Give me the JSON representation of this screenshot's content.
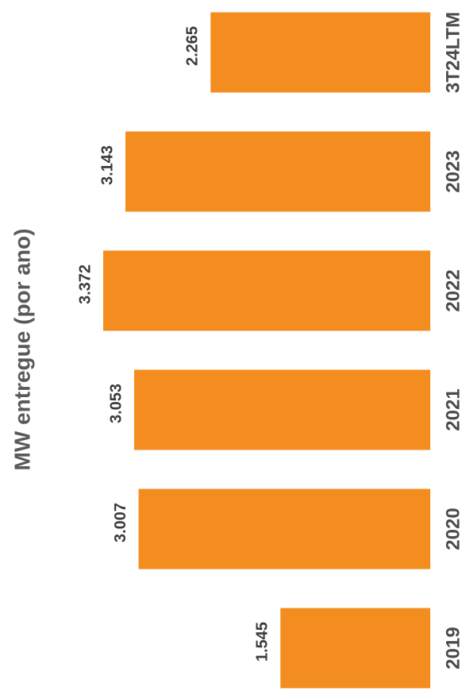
{
  "chart_data": {
    "type": "bar",
    "orientation": "horizontal",
    "title": "MW entregue (por ano)",
    "categories": [
      "2019",
      "2020",
      "2021",
      "2022",
      "2023",
      "3T24LTM"
    ],
    "values": [
      1545,
      3007,
      3053,
      3372,
      3143,
      2265
    ],
    "value_labels": [
      "1.545",
      "3.007",
      "3.053",
      "3.372",
      "3.143",
      "2.265"
    ],
    "color": "#f38d1f"
  }
}
